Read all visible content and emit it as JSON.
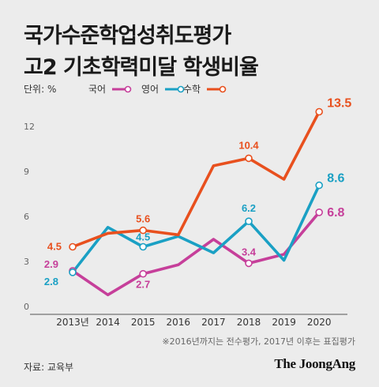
{
  "title_lines": [
    "국가수준학업성취도평가",
    "고2 기초학력미달 학생비율"
  ],
  "unit_label": "단위: %",
  "footnote": "※2016년까지는 전수평가, 2017년 이후는 표집평가",
  "source": "자료: 교육부",
  "brand": "The JoongAng",
  "colors": {
    "korean": "#c63f9a",
    "english": "#1aa0c4",
    "math": "#e8501e",
    "axis": "#555555",
    "grid": "#bdbdbd"
  },
  "chart_data": {
    "type": "line",
    "x": [
      "2013년",
      "2014",
      "2015",
      "2016",
      "2017",
      "2018",
      "2019",
      "2020"
    ],
    "ylim": [
      0,
      15
    ],
    "yticks": [
      0,
      3,
      6,
      9,
      12
    ],
    "legend_position": "top",
    "grid": false,
    "series": [
      {
        "key": "korean",
        "name": "국어",
        "values": [
          2.9,
          1.3,
          2.7,
          3.3,
          5.0,
          3.4,
          4.0,
          6.8
        ]
      },
      {
        "key": "english",
        "name": "영어",
        "values": [
          2.8,
          5.8,
          4.5,
          5.2,
          4.1,
          6.2,
          3.6,
          8.6
        ]
      },
      {
        "key": "math",
        "name": "수학",
        "values": [
          4.5,
          5.4,
          5.6,
          5.3,
          9.9,
          10.4,
          9.0,
          13.5
        ]
      }
    ],
    "data_labels": [
      {
        "series": "korean",
        "index": 0,
        "text": "2.9"
      },
      {
        "series": "korean",
        "index": 2,
        "text": "2.7"
      },
      {
        "series": "korean",
        "index": 5,
        "text": "3.4"
      },
      {
        "series": "korean",
        "index": 7,
        "text": "6.8"
      },
      {
        "series": "english",
        "index": 0,
        "text": "2.8"
      },
      {
        "series": "english",
        "index": 2,
        "text": "4.5"
      },
      {
        "series": "english",
        "index": 5,
        "text": "6.2"
      },
      {
        "series": "english",
        "index": 7,
        "text": "8.6"
      },
      {
        "series": "math",
        "index": 0,
        "text": "4.5"
      },
      {
        "series": "math",
        "index": 2,
        "text": "5.6"
      },
      {
        "series": "math",
        "index": 5,
        "text": "10.4"
      },
      {
        "series": "math",
        "index": 7,
        "text": "13.5"
      }
    ]
  }
}
